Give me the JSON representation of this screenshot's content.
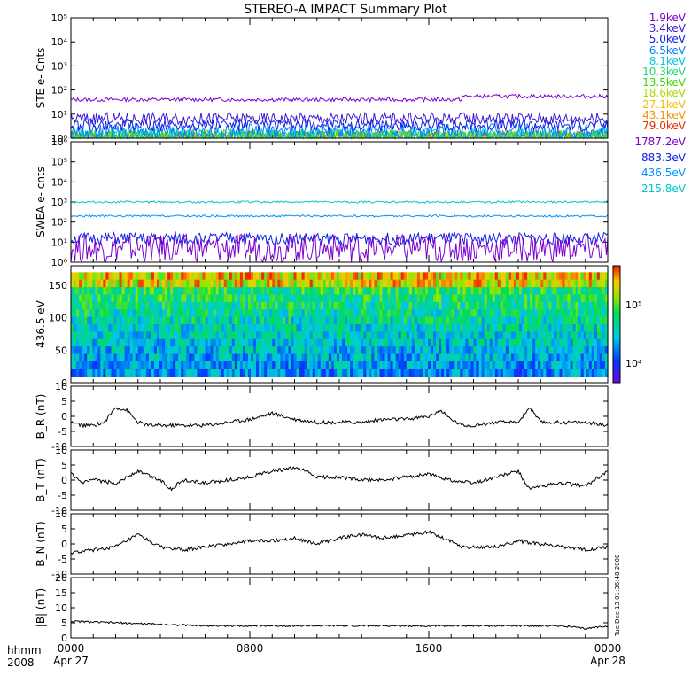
{
  "title": "STEREO-A IMPACT Summary Plot",
  "colors": {
    "ste": [
      "#7a00d0",
      "#3a1ad8",
      "#1020e8",
      "#0080ff",
      "#00c8e8",
      "#20d870",
      "#38d800",
      "#b0d800",
      "#f0c000",
      "#f09000",
      "#e03000"
    ],
    "swea": [
      "#7a00d0",
      "#1020e8",
      "#0090ff",
      "#00c8c8"
    ],
    "mag_line": "#000000"
  },
  "chart_data": [
    {
      "type": "line",
      "id": "ste",
      "ylabel": "STE e- Cnts",
      "yscale": "log",
      "ylim": [
        1,
        100000
      ],
      "yticks": [
        "10⁰",
        "10¹",
        "10²",
        "10³",
        "10⁴",
        "10⁵"
      ],
      "legend": [
        "1.9keV",
        "3.4keV",
        "5.0keV",
        "6.5keV",
        "8.1keV",
        "10.3keV",
        "13.5keV",
        "18.6keV",
        "27.1keV",
        "43.1keV",
        "79.0keV"
      ],
      "series": [
        {
          "name": "1.9keV",
          "level": 40,
          "jump_after": 17.5,
          "jump_level": 55,
          "noise": 0.08
        },
        {
          "name": "3.4keV",
          "level": 6.5,
          "noise": 0.25
        },
        {
          "name": "5.0keV",
          "level": 3.5,
          "noise": 0.25
        },
        {
          "name": "6.5keV",
          "level": 2.0,
          "noise": 0.3
        },
        {
          "name": "8.1keV",
          "level": 1.4,
          "noise": 0.3
        },
        {
          "name": "10.3keV",
          "level": 1.2,
          "noise": 0.3
        },
        {
          "name": "13.5keV",
          "level": 1.1,
          "noise": 0.3
        },
        {
          "name": "18.6keV",
          "level": 1.05,
          "noise": 0.3
        },
        {
          "name": "27.1keV",
          "level": 1.0,
          "noise": 0.3
        },
        {
          "name": "43.1keV",
          "level": 1.0,
          "noise": 0.3
        },
        {
          "name": "79.0keV",
          "level": 1.0,
          "noise": 0.3
        }
      ]
    },
    {
      "type": "line",
      "id": "swea",
      "ylabel": "SWEA e- cnts",
      "yscale": "log",
      "ylim": [
        1,
        1000000
      ],
      "yticks": [
        "10⁰",
        "10¹",
        "10²",
        "10³",
        "10⁴",
        "10⁵",
        "10⁶"
      ],
      "legend": [
        "1787.2eV",
        "883.3eV",
        "436.5eV",
        "215.8eV"
      ],
      "series": [
        {
          "name": "1787.2eV",
          "level": 5,
          "noise": 0.7
        },
        {
          "name": "883.3eV",
          "level": 15,
          "noise": 0.3
        },
        {
          "name": "436.5eV",
          "level": 200,
          "noise": 0.05
        },
        {
          "name": "215.8eV",
          "level": 1000,
          "noise": 0.05
        }
      ]
    },
    {
      "type": "heatmap",
      "id": "spectrogram",
      "ylabel": "436.5 eV",
      "ylim": [
        0,
        180
      ],
      "yticks": [
        "0",
        "50",
        "100",
        "150"
      ],
      "colorbar_ticks": [
        "10⁵",
        "10⁴"
      ]
    },
    {
      "type": "line",
      "id": "br",
      "ylabel": "B_R (nT)",
      "ylim": [
        -10,
        10
      ],
      "yticks": [
        "-10",
        "-5",
        "0",
        "5",
        "10"
      ],
      "x": [
        0,
        0.5,
        1,
        1.5,
        2,
        2.5,
        3,
        3.5,
        4,
        5,
        6,
        7,
        8,
        9,
        9.5,
        10,
        11,
        12,
        13,
        14,
        15,
        16,
        16.5,
        17,
        17.5,
        18,
        19,
        20,
        20.5,
        21,
        22,
        23,
        24
      ],
      "values": [
        -2,
        -3,
        -3,
        -2,
        3,
        2,
        -2,
        -3,
        -3,
        -3,
        -3,
        -2,
        -1,
        1,
        0,
        -1,
        -2,
        -2,
        -2,
        -1,
        -1,
        0,
        2,
        -1,
        -3,
        -3,
        -2,
        -2,
        3,
        -2,
        -2,
        -2,
        -3
      ]
    },
    {
      "type": "line",
      "id": "bt",
      "ylabel": "B_T (nT)",
      "ylim": [
        -10,
        10
      ],
      "yticks": [
        "-10",
        "-5",
        "0",
        "5",
        "10"
      ],
      "x": [
        0,
        0.5,
        1,
        2,
        3,
        4,
        4.5,
        5,
        6,
        7,
        8,
        9,
        10,
        10.5,
        11,
        12,
        13,
        14,
        15,
        16,
        17,
        18,
        19,
        20,
        20.5,
        21,
        22,
        23,
        24
      ],
      "values": [
        2,
        -1,
        0,
        -1,
        3,
        0,
        -3,
        0,
        -1,
        0,
        1,
        3,
        4,
        3,
        1,
        1,
        0,
        0,
        1,
        2,
        0,
        -1,
        1,
        3,
        -3,
        -2,
        -1,
        -2,
        3
      ]
    },
    {
      "type": "line",
      "id": "bn",
      "ylabel": "B_N (nT)",
      "ylim": [
        -10,
        10
      ],
      "yticks": [
        "-10",
        "-5",
        "0",
        "5",
        "10"
      ],
      "x": [
        0,
        1,
        2,
        3,
        4,
        5,
        6,
        7,
        8,
        9,
        10,
        11,
        12,
        13,
        14,
        15,
        16,
        17,
        17.5,
        18,
        19,
        20,
        21,
        22,
        23,
        24
      ],
      "values": [
        -3,
        -2,
        -1,
        3,
        -1,
        -2,
        -1,
        0,
        1,
        1,
        2,
        0,
        2,
        3,
        2,
        3,
        4,
        1,
        -1,
        -1,
        -1,
        1,
        0,
        -1,
        -2,
        -1
      ]
    },
    {
      "type": "line",
      "id": "bmag",
      "ylabel": "|B| (nT)",
      "ylim": [
        0,
        20
      ],
      "yticks": [
        "0",
        "5",
        "10",
        "15",
        "20"
      ],
      "x": [
        0,
        2,
        4,
        6,
        8,
        10,
        12,
        14,
        16,
        18,
        20,
        22,
        23,
        24
      ],
      "values": [
        5.5,
        5,
        4.5,
        4,
        4,
        4,
        4,
        4,
        4,
        4,
        4,
        4,
        3,
        4
      ]
    }
  ],
  "xaxis": {
    "tick_labels": [
      "0000",
      "0800",
      "1600",
      "0000"
    ],
    "date_labels": [
      "Apr 27",
      "",
      "",
      "Apr 28"
    ],
    "left_labels": [
      "hhmm",
      "2008"
    ]
  },
  "stamp": "Tue Dec 13 01:36:48 2008"
}
